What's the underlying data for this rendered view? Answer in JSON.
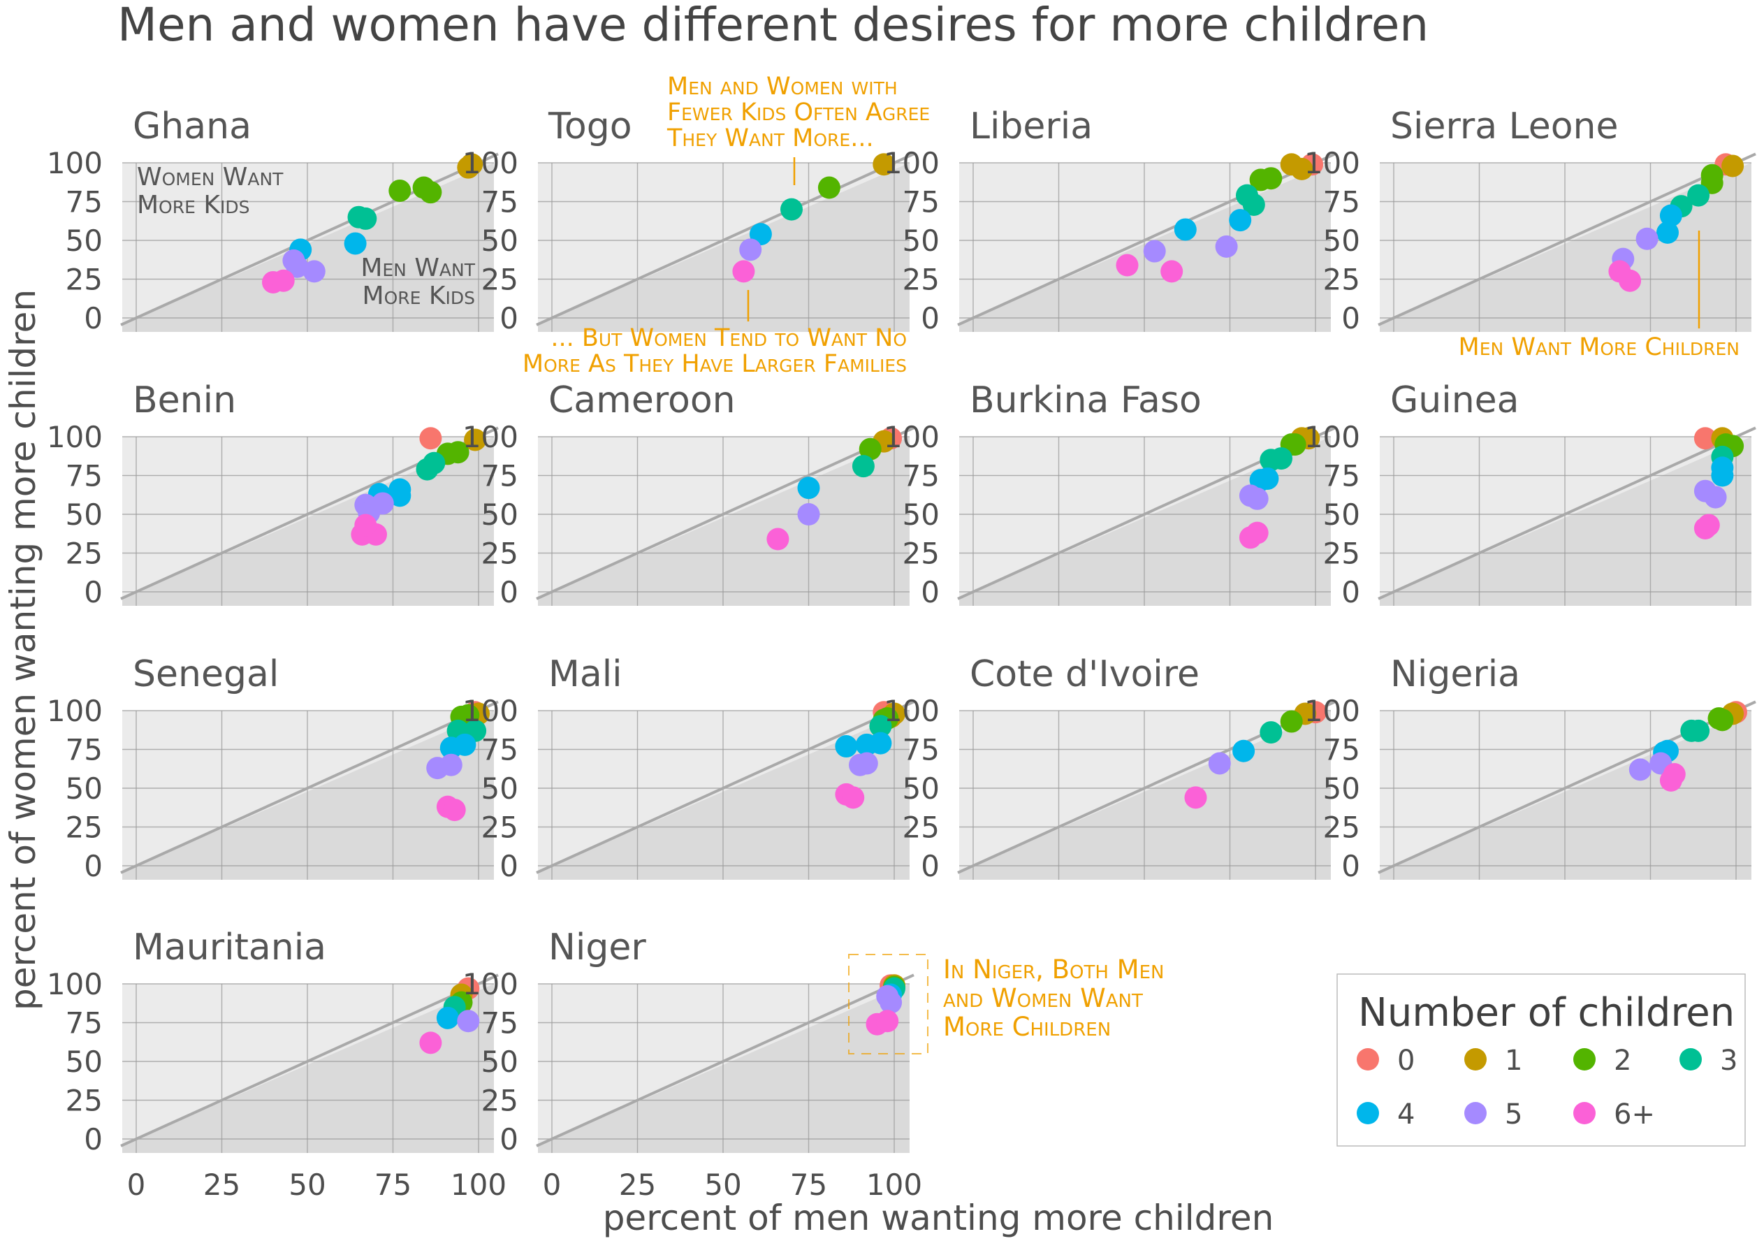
{
  "title": "Men and women have different desires for more children",
  "xlabel": "percent of men wanting more children",
  "ylabel": "percent of women wanting more children",
  "ticks": [
    "0",
    "25",
    "50",
    "75",
    "100"
  ],
  "legend": {
    "title": "Number of children",
    "items": [
      {
        "label": "0",
        "color": "#F8766D"
      },
      {
        "label": "1",
        "color": "#C49A00"
      },
      {
        "label": "2",
        "color": "#53B400"
      },
      {
        "label": "3",
        "color": "#00C094"
      },
      {
        "label": "4",
        "color": "#00B6EB"
      },
      {
        "label": "5",
        "color": "#A58AFF"
      },
      {
        "label": "6+",
        "color": "#FB61D7"
      }
    ]
  },
  "annotations": {
    "ghana_women": [
      "Women Want",
      "More Kids"
    ],
    "ghana_men": [
      "Men Want",
      "More Kids"
    ],
    "togo_top": [
      "Men and Women with",
      "Fewer Kids Often Agree",
      "They Want More..."
    ],
    "togo_bottom": [
      "... But Women Tend to Want No",
      "More As They Have Larger Families"
    ],
    "sierra": [
      "Men Want More Children"
    ],
    "niger": [
      "In Niger, Both Men",
      "and Women Want",
      "More Children"
    ]
  },
  "colors": {
    "accent": "#F0A000",
    "panel_upper": "#EBEBEB",
    "panel_lower": "#DADADA",
    "diagonal": "#A9A9A9",
    "text": "#4D4D4D"
  },
  "chart_data": {
    "type": "scatter",
    "xlim": [
      0,
      100
    ],
    "ylim": [
      0,
      100
    ],
    "grid": true,
    "legend_position": "bottom-right",
    "panels": [
      {
        "name": "Ghana",
        "points": [
          {
            "x": 97,
            "y": 97,
            "g": "1"
          },
          {
            "x": 98,
            "y": 99,
            "g": "1"
          },
          {
            "x": 77,
            "y": 82,
            "g": "2"
          },
          {
            "x": 84,
            "y": 84,
            "g": "2"
          },
          {
            "x": 86,
            "y": 81,
            "g": "2"
          },
          {
            "x": 65,
            "y": 65,
            "g": "3"
          },
          {
            "x": 67,
            "y": 64,
            "g": "3"
          },
          {
            "x": 48,
            "y": 44,
            "g": "4"
          },
          {
            "x": 64,
            "y": 48,
            "g": "4"
          },
          {
            "x": 46,
            "y": 37,
            "g": "5"
          },
          {
            "x": 52,
            "y": 30,
            "g": "5"
          },
          {
            "x": 47,
            "y": 33,
            "g": "5"
          },
          {
            "x": 40,
            "y": 23,
            "g": "6+"
          },
          {
            "x": 43,
            "y": 24,
            "g": "6+"
          }
        ]
      },
      {
        "name": "Togo",
        "points": [
          {
            "x": 97,
            "y": 99,
            "g": "1"
          },
          {
            "x": 81,
            "y": 84,
            "g": "2"
          },
          {
            "x": 70,
            "y": 70,
            "g": "3"
          },
          {
            "x": 61,
            "y": 54,
            "g": "4"
          },
          {
            "x": 58,
            "y": 44,
            "g": "5"
          },
          {
            "x": 56,
            "y": 30,
            "g": "6+"
          }
        ]
      },
      {
        "name": "Liberia",
        "points": [
          {
            "x": 99,
            "y": 99,
            "g": "0"
          },
          {
            "x": 93,
            "y": 99,
            "g": "1"
          },
          {
            "x": 96,
            "y": 96,
            "g": "1"
          },
          {
            "x": 84,
            "y": 89,
            "g": "2"
          },
          {
            "x": 87,
            "y": 90,
            "g": "2"
          },
          {
            "x": 80,
            "y": 79,
            "g": "3"
          },
          {
            "x": 82,
            "y": 73,
            "g": "3"
          },
          {
            "x": 62,
            "y": 57,
            "g": "4"
          },
          {
            "x": 78,
            "y": 63,
            "g": "4"
          },
          {
            "x": 53,
            "y": 43,
            "g": "5"
          },
          {
            "x": 74,
            "y": 46,
            "g": "5"
          },
          {
            "x": 45,
            "y": 34,
            "g": "6+"
          },
          {
            "x": 58,
            "y": 30,
            "g": "6+"
          }
        ]
      },
      {
        "name": "Sierra Leone",
        "points": [
          {
            "x": 97,
            "y": 99,
            "g": "0"
          },
          {
            "x": 99,
            "y": 98,
            "g": "1"
          },
          {
            "x": 93,
            "y": 92,
            "g": "2"
          },
          {
            "x": 93,
            "y": 87,
            "g": "2"
          },
          {
            "x": 84,
            "y": 72,
            "g": "3"
          },
          {
            "x": 89,
            "y": 79,
            "g": "3"
          },
          {
            "x": 80,
            "y": 55,
            "g": "4"
          },
          {
            "x": 81,
            "y": 66,
            "g": "4"
          },
          {
            "x": 67,
            "y": 38,
            "g": "5"
          },
          {
            "x": 74,
            "y": 51,
            "g": "5"
          },
          {
            "x": 66,
            "y": 30,
            "g": "6+"
          },
          {
            "x": 69,
            "y": 24,
            "g": "6+"
          }
        ]
      },
      {
        "name": "Benin",
        "points": [
          {
            "x": 86,
            "y": 99,
            "g": "0"
          },
          {
            "x": 99,
            "y": 98,
            "g": "1"
          },
          {
            "x": 94,
            "y": 90,
            "g": "2"
          },
          {
            "x": 91,
            "y": 89,
            "g": "2"
          },
          {
            "x": 85,
            "y": 79,
            "g": "3"
          },
          {
            "x": 87,
            "y": 83,
            "g": "3"
          },
          {
            "x": 71,
            "y": 63,
            "g": "4"
          },
          {
            "x": 77,
            "y": 66,
            "g": "4"
          },
          {
            "x": 77,
            "y": 62,
            "g": "4"
          },
          {
            "x": 67,
            "y": 56,
            "g": "5"
          },
          {
            "x": 72,
            "y": 57,
            "g": "5"
          },
          {
            "x": 68,
            "y": 51,
            "g": "5"
          },
          {
            "x": 66,
            "y": 37,
            "g": "6+"
          },
          {
            "x": 70,
            "y": 37,
            "g": "6+"
          },
          {
            "x": 67,
            "y": 43,
            "g": "6+"
          }
        ]
      },
      {
        "name": "Cameroon",
        "points": [
          {
            "x": 99,
            "y": 99,
            "g": "0"
          },
          {
            "x": 97,
            "y": 97,
            "g": "1"
          },
          {
            "x": 93,
            "y": 92,
            "g": "2"
          },
          {
            "x": 91,
            "y": 81,
            "g": "3"
          },
          {
            "x": 75,
            "y": 67,
            "g": "4"
          },
          {
            "x": 75,
            "y": 50,
            "g": "5"
          },
          {
            "x": 66,
            "y": 34,
            "g": "6+"
          }
        ]
      },
      {
        "name": "Burkina Faso",
        "points": [
          {
            "x": 98,
            "y": 99,
            "g": "1"
          },
          {
            "x": 96,
            "y": 99,
            "g": "1"
          },
          {
            "x": 93,
            "y": 95,
            "g": "2"
          },
          {
            "x": 94,
            "y": 95,
            "g": "2"
          },
          {
            "x": 87,
            "y": 85,
            "g": "3"
          },
          {
            "x": 90,
            "y": 86,
            "g": "3"
          },
          {
            "x": 84,
            "y": 72,
            "g": "4"
          },
          {
            "x": 86,
            "y": 73,
            "g": "4"
          },
          {
            "x": 81,
            "y": 62,
            "g": "5"
          },
          {
            "x": 83,
            "y": 60,
            "g": "5"
          },
          {
            "x": 81,
            "y": 35,
            "g": "6+"
          },
          {
            "x": 83,
            "y": 38,
            "g": "6+"
          }
        ]
      },
      {
        "name": "Guinea",
        "points": [
          {
            "x": 91,
            "y": 99,
            "g": "0"
          },
          {
            "x": 96,
            "y": 99,
            "g": "1"
          },
          {
            "x": 97,
            "y": 95,
            "g": "2"
          },
          {
            "x": 99,
            "y": 94,
            "g": "2"
          },
          {
            "x": 96,
            "y": 87,
            "g": "3"
          },
          {
            "x": 96,
            "y": 80,
            "g": "4"
          },
          {
            "x": 96,
            "y": 75,
            "g": "4"
          },
          {
            "x": 91,
            "y": 65,
            "g": "5"
          },
          {
            "x": 94,
            "y": 61,
            "g": "5"
          },
          {
            "x": 91,
            "y": 41,
            "g": "6+"
          },
          {
            "x": 92,
            "y": 43,
            "g": "6+"
          }
        ]
      },
      {
        "name": "Senegal",
        "points": [
          {
            "x": 99,
            "y": 99,
            "g": "0"
          },
          {
            "x": 100,
            "y": 98,
            "g": "1"
          },
          {
            "x": 95,
            "y": 96,
            "g": "2"
          },
          {
            "x": 97,
            "y": 97,
            "g": "2"
          },
          {
            "x": 94,
            "y": 87,
            "g": "3"
          },
          {
            "x": 99,
            "y": 87,
            "g": "3"
          },
          {
            "x": 92,
            "y": 76,
            "g": "4"
          },
          {
            "x": 96,
            "y": 78,
            "g": "4"
          },
          {
            "x": 88,
            "y": 63,
            "g": "5"
          },
          {
            "x": 92,
            "y": 65,
            "g": "5"
          },
          {
            "x": 91,
            "y": 38,
            "g": "6+"
          },
          {
            "x": 93,
            "y": 36,
            "g": "6+"
          }
        ]
      },
      {
        "name": "Mali",
        "points": [
          {
            "x": 97,
            "y": 99,
            "g": "0"
          },
          {
            "x": 99,
            "y": 96,
            "g": "1"
          },
          {
            "x": 100,
            "y": 98,
            "g": "1"
          },
          {
            "x": 97,
            "y": 94,
            "g": "2"
          },
          {
            "x": 98,
            "y": 95,
            "g": "2"
          },
          {
            "x": 96,
            "y": 90,
            "g": "3"
          },
          {
            "x": 86,
            "y": 77,
            "g": "4"
          },
          {
            "x": 92,
            "y": 78,
            "g": "4"
          },
          {
            "x": 96,
            "y": 79,
            "g": "4"
          },
          {
            "x": 90,
            "y": 65,
            "g": "5"
          },
          {
            "x": 92,
            "y": 66,
            "g": "5"
          },
          {
            "x": 86,
            "y": 46,
            "g": "6+"
          },
          {
            "x": 88,
            "y": 44,
            "g": "6+"
          }
        ]
      },
      {
        "name": "Cote d'Ivoire",
        "points": [
          {
            "x": 100,
            "y": 99,
            "g": "0"
          },
          {
            "x": 97,
            "y": 98,
            "g": "1"
          },
          {
            "x": 93,
            "y": 93,
            "g": "2"
          },
          {
            "x": 87,
            "y": 86,
            "g": "3"
          },
          {
            "x": 79,
            "y": 74,
            "g": "4"
          },
          {
            "x": 72,
            "y": 66,
            "g": "5"
          },
          {
            "x": 65,
            "y": 44,
            "g": "6+"
          }
        ]
      },
      {
        "name": "Nigeria",
        "points": [
          {
            "x": 100,
            "y": 99,
            "g": "0"
          },
          {
            "x": 99,
            "y": 98,
            "g": "1"
          },
          {
            "x": 96,
            "y": 94,
            "g": "2"
          },
          {
            "x": 95,
            "y": 95,
            "g": "2"
          },
          {
            "x": 87,
            "y": 87,
            "g": "3"
          },
          {
            "x": 89,
            "y": 87,
            "g": "3"
          },
          {
            "x": 79,
            "y": 73,
            "g": "4"
          },
          {
            "x": 80,
            "y": 74,
            "g": "4"
          },
          {
            "x": 72,
            "y": 62,
            "g": "5"
          },
          {
            "x": 78,
            "y": 66,
            "g": "5"
          },
          {
            "x": 82,
            "y": 59,
            "g": "6+"
          },
          {
            "x": 81,
            "y": 55,
            "g": "6+"
          }
        ]
      },
      {
        "name": "Mauritania",
        "points": [
          {
            "x": 97,
            "y": 97,
            "g": "0"
          },
          {
            "x": 95,
            "y": 93,
            "g": "1"
          },
          {
            "x": 95,
            "y": 88,
            "g": "2"
          },
          {
            "x": 93,
            "y": 85,
            "g": "3"
          },
          {
            "x": 91,
            "y": 78,
            "g": "4"
          },
          {
            "x": 97,
            "y": 76,
            "g": "5"
          },
          {
            "x": 86,
            "y": 62,
            "g": "6+"
          }
        ]
      },
      {
        "name": "Niger",
        "points": [
          {
            "x": 99,
            "y": 99,
            "g": "0"
          },
          {
            "x": 100,
            "y": 99,
            "g": "1"
          },
          {
            "x": 100,
            "y": 98,
            "g": "2"
          },
          {
            "x": 100,
            "y": 97,
            "g": "3"
          },
          {
            "x": 99,
            "y": 93,
            "g": "4"
          },
          {
            "x": 98,
            "y": 92,
            "g": "5"
          },
          {
            "x": 99,
            "y": 88,
            "g": "5"
          },
          {
            "x": 95,
            "y": 74,
            "g": "6+"
          },
          {
            "x": 98,
            "y": 76,
            "g": "6+"
          }
        ]
      }
    ]
  }
}
